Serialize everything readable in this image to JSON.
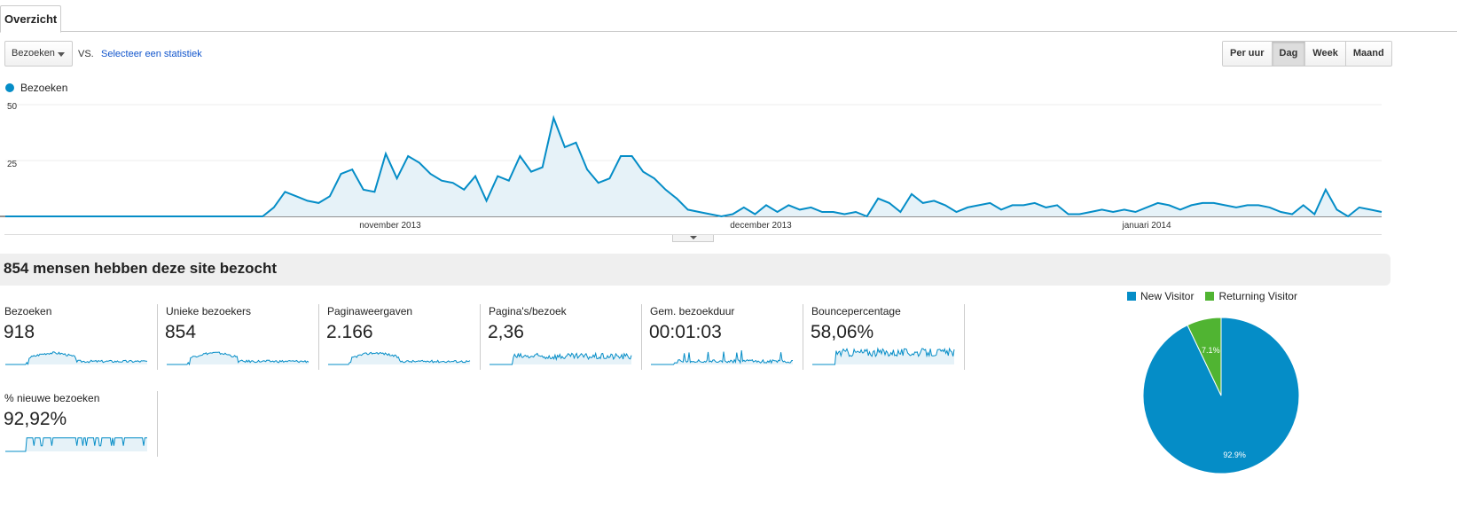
{
  "tabs": [
    {
      "label": "Overzicht"
    }
  ],
  "controls": {
    "metric_select": "Bezoeken",
    "vs_label": "VS.",
    "select_stat_link": "Selecteer een statistiek",
    "periods": [
      "Per uur",
      "Dag",
      "Week",
      "Maand"
    ],
    "active_period": "Dag"
  },
  "colors": {
    "primary": "#058dc7",
    "secondary": "#50b432",
    "fill": "#e6f2f8"
  },
  "chart_data": [
    {
      "type": "area",
      "series": [
        {
          "name": "Bezoeken",
          "values": [
            0,
            0,
            0,
            0,
            0,
            0,
            0,
            0,
            0,
            0,
            0,
            0,
            0,
            0,
            0,
            0,
            0,
            0,
            0,
            0,
            0,
            0,
            0,
            0,
            4,
            11,
            9,
            7,
            6,
            9,
            19,
            21,
            12,
            11,
            28,
            17,
            27,
            24,
            19,
            16,
            15,
            12,
            18,
            7,
            18,
            16,
            27,
            20,
            22,
            44,
            31,
            33,
            21,
            15,
            17,
            27,
            27,
            20,
            17,
            12,
            8,
            3,
            2,
            1,
            0,
            1,
            4,
            1,
            5,
            2,
            5,
            3,
            4,
            2,
            2,
            1,
            2,
            0,
            8,
            6,
            2,
            10,
            6,
            7,
            5,
            2,
            4,
            5,
            6,
            3,
            5,
            5,
            6,
            4,
            5,
            1,
            1,
            2,
            3,
            2,
            3,
            2,
            4,
            6,
            5,
            3,
            5,
            6,
            6,
            5,
            4,
            5,
            5,
            4,
            2,
            1,
            5,
            1,
            12,
            3,
            0,
            4,
            3,
            2
          ]
        }
      ],
      "x_labels": [
        "november 2013",
        "december 2013",
        "januari 2014"
      ],
      "y_ticks": [
        25,
        50
      ],
      "ylim": [
        0,
        50
      ]
    },
    {
      "type": "pie",
      "series": [
        {
          "name": "New Visitor",
          "value": 92.9,
          "label": "92.9%"
        },
        {
          "name": "Returning Visitor",
          "value": 7.1,
          "label": "7.1%"
        }
      ]
    }
  ],
  "summary": {
    "title": "854 mensen hebben deze site bezocht"
  },
  "metrics": [
    {
      "label": "Bezoeken",
      "value": "918",
      "shape": "hump"
    },
    {
      "label": "Unieke bezoekers",
      "value": "854",
      "shape": "hump"
    },
    {
      "label": "Paginaweergaven",
      "value": "2.166",
      "shape": "hump"
    },
    {
      "label": "Pagina's/bezoek",
      "value": "2,36",
      "shape": "noisy"
    },
    {
      "label": "Gem. bezoekduur",
      "value": "00:01:03",
      "shape": "spiky"
    },
    {
      "label": "Bouncepercentage",
      "value": "58,06%",
      "shape": "bounce"
    },
    {
      "label": "% nieuwe bezoeken",
      "value": "92,92%",
      "shape": "plateau"
    }
  ]
}
